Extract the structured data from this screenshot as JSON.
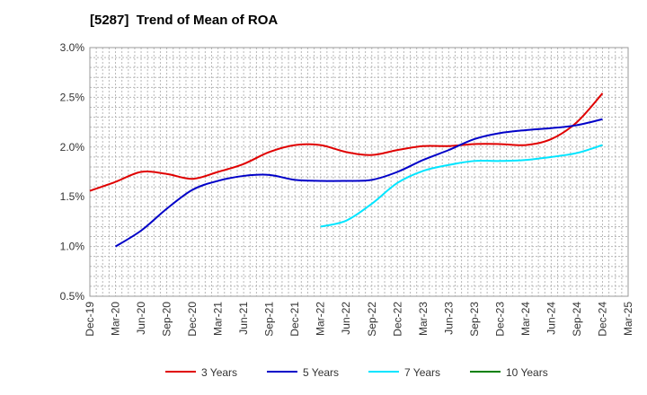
{
  "chart_data": {
    "type": "line",
    "title": "[5287]  Trend of Mean of ROA",
    "xlabel": "",
    "ylabel": "",
    "ylim": [
      0.5,
      3.0
    ],
    "yticks": [
      "0.5%",
      "1.0%",
      "1.5%",
      "2.0%",
      "2.5%",
      "3.0%"
    ],
    "xticks": [
      "Dec-19",
      "Mar-20",
      "Jun-20",
      "Sep-20",
      "Dec-20",
      "Mar-21",
      "Jun-21",
      "Sep-21",
      "Dec-21",
      "Mar-22",
      "Jun-22",
      "Sep-22",
      "Dec-22",
      "Mar-23",
      "Jun-23",
      "Sep-23",
      "Dec-23",
      "Mar-24",
      "Jun-24",
      "Sep-24",
      "Dec-24",
      "Mar-25"
    ],
    "grid": true,
    "legend_position": "bottom",
    "series": [
      {
        "name": "3 Years",
        "color": "#e00000",
        "values": [
          1.56,
          1.65,
          1.75,
          1.73,
          1.68,
          1.75,
          1.83,
          1.95,
          2.02,
          2.02,
          1.95,
          1.92,
          1.97,
          2.01,
          2.01,
          2.03,
          2.03,
          2.02,
          2.08,
          2.25,
          2.54,
          null
        ]
      },
      {
        "name": "5 Years",
        "color": "#0000c8",
        "values": [
          null,
          1.0,
          1.16,
          1.38,
          1.57,
          1.66,
          1.71,
          1.72,
          1.67,
          1.66,
          1.66,
          1.67,
          1.75,
          1.87,
          1.97,
          2.08,
          2.14,
          2.17,
          2.19,
          2.22,
          2.28,
          null
        ]
      },
      {
        "name": "7 Years",
        "color": "#00e5ff",
        "values": [
          null,
          null,
          null,
          null,
          null,
          null,
          null,
          null,
          null,
          1.2,
          1.26,
          1.43,
          1.64,
          1.76,
          1.82,
          1.86,
          1.86,
          1.87,
          1.9,
          1.94,
          2.02,
          null
        ]
      },
      {
        "name": "10 Years",
        "color": "#008000",
        "values": [
          null,
          null,
          null,
          null,
          null,
          null,
          null,
          null,
          null,
          null,
          null,
          null,
          null,
          null,
          null,
          null,
          null,
          null,
          null,
          null,
          null,
          null
        ]
      }
    ]
  }
}
